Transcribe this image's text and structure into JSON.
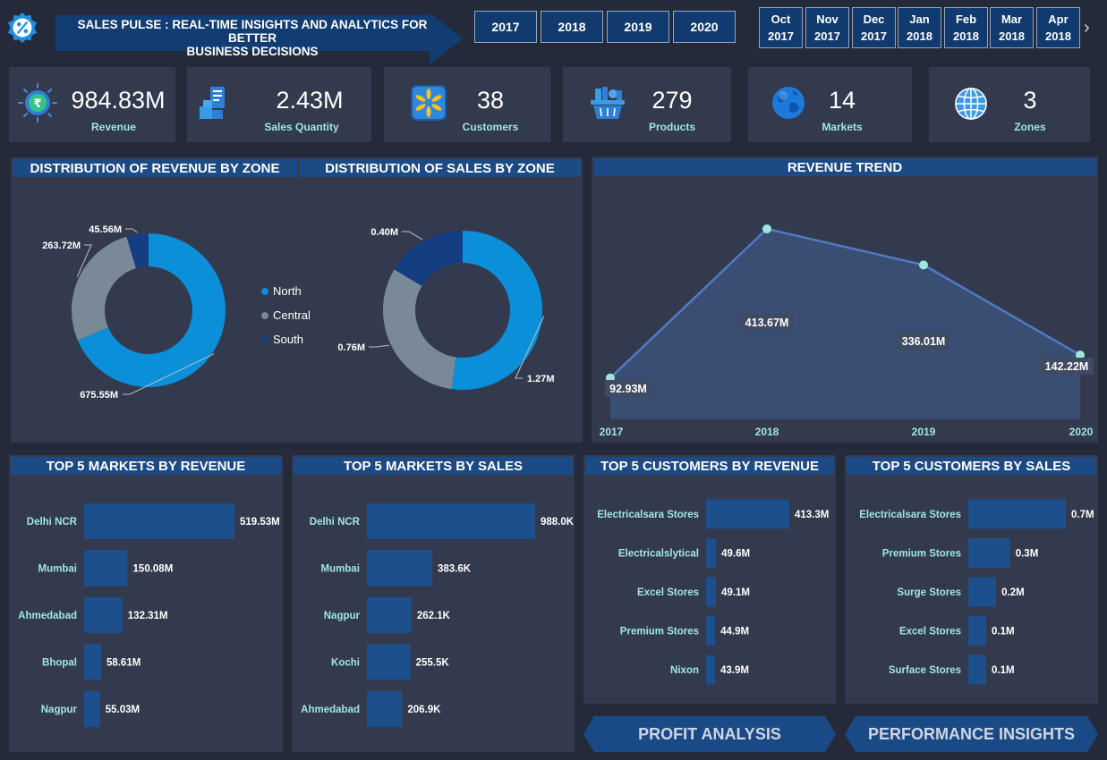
{
  "header": {
    "title_line1": "SALES PULSE : REAL-TIME INSIGHTS AND ANALYTICS FOR BETTER",
    "title_line2": "BUSINESS DECISIONS",
    "logo_icon": "percent-badge-icon"
  },
  "years": [
    "2017",
    "2018",
    "2019",
    "2020"
  ],
  "months": [
    {
      "m": "Oct",
      "y": "2017"
    },
    {
      "m": "Nov",
      "y": "2017"
    },
    {
      "m": "Dec",
      "y": "2017"
    },
    {
      "m": "Jan",
      "y": "2018"
    },
    {
      "m": "Feb",
      "y": "2018"
    },
    {
      "m": "Mar",
      "y": "2018"
    },
    {
      "m": "Apr",
      "y": "2018"
    }
  ],
  "next_icon": "chevron-right-icon",
  "kpis": [
    {
      "value": "984.83M",
      "label": "Revenue",
      "icon": "rupee-coin-icon"
    },
    {
      "value": "2.43M",
      "label": "Sales Quantity",
      "icon": "boxes-icon"
    },
    {
      "value": "38",
      "label": "Customers",
      "icon": "walmart-logo-icon"
    },
    {
      "value": "279",
      "label": "Products",
      "icon": "grocery-basket-icon"
    },
    {
      "value": "14",
      "label": "Markets",
      "icon": "globe-icon"
    },
    {
      "value": "3",
      "label": "Zones",
      "icon": "world-grid-icon"
    }
  ],
  "colors": {
    "north": "#0a8fd8",
    "central": "#7a8997",
    "south": "#153e82",
    "bar": "#1d4f8c",
    "accent_text": "#9fe6e0",
    "title_bg": "#1c4a84"
  },
  "nav": {
    "profit": "PROFIT ANALYSIS",
    "performance": "PERFORMANCE INSIGHTS"
  },
  "chart_data": [
    {
      "id": "revenue_by_zone",
      "type": "pie",
      "title": "DISTRIBUTION OF REVENUE BY ZONE",
      "categories": [
        "North",
        "Central",
        "South"
      ],
      "values": [
        675.55,
        263.72,
        45.56
      ],
      "labels": [
        "675.55M",
        "263.72M",
        "45.56M"
      ]
    },
    {
      "id": "sales_by_zone",
      "type": "pie",
      "title": "DISTRIBUTION OF SALES BY ZONE",
      "categories": [
        "North",
        "Central",
        "South"
      ],
      "values": [
        1.27,
        0.76,
        0.4
      ],
      "labels": [
        "1.27M",
        "0.76M",
        "0.40M"
      ]
    },
    {
      "id": "revenue_trend",
      "type": "area",
      "title": "REVENUE TREND",
      "x": [
        "2017",
        "2018",
        "2019",
        "2020"
      ],
      "values": [
        92.93,
        413.67,
        336.01,
        142.22
      ],
      "labels": [
        "92.93M",
        "413.67M",
        "336.01M",
        "142.22M"
      ]
    },
    {
      "id": "top_markets_revenue",
      "type": "bar",
      "title": "TOP 5 MARKETS BY REVENUE",
      "categories": [
        "Delhi NCR",
        "Mumbai",
        "Ahmedabad",
        "Bhopal",
        "Nagpur"
      ],
      "values": [
        519.53,
        150.08,
        132.31,
        58.61,
        55.03
      ],
      "labels": [
        "519.53M",
        "150.08M",
        "132.31M",
        "58.61M",
        "55.03M"
      ]
    },
    {
      "id": "top_markets_sales",
      "type": "bar",
      "title": "TOP 5 MARKETS BY SALES",
      "categories": [
        "Delhi NCR",
        "Mumbai",
        "Nagpur",
        "Kochi",
        "Ahmedabad"
      ],
      "values": [
        988.0,
        383.6,
        262.1,
        255.5,
        206.9
      ],
      "labels": [
        "988.0K",
        "383.6K",
        "262.1K",
        "255.5K",
        "206.9K"
      ]
    },
    {
      "id": "top_customers_revenue",
      "type": "bar",
      "title": "TOP 5 CUSTOMERS BY REVENUE",
      "categories": [
        "Electricalsara Stores",
        "Electricalslytical",
        "Excel Stores",
        "Premium Stores",
        "Nixon"
      ],
      "values": [
        413.3,
        49.6,
        49.1,
        44.9,
        43.9
      ],
      "labels": [
        "413.3M",
        "49.6M",
        "49.1M",
        "44.9M",
        "43.9M"
      ]
    },
    {
      "id": "top_customers_sales",
      "type": "bar",
      "title": "TOP 5 CUSTOMERS BY SALES",
      "categories": [
        "Electricalsara Stores",
        "Premium Stores",
        "Surge Stores",
        "Excel Stores",
        "Surface Stores"
      ],
      "values": [
        0.7,
        0.3,
        0.2,
        0.1,
        0.1
      ],
      "labels": [
        "0.7M",
        "0.3M",
        "0.2M",
        "0.1M",
        "0.1M"
      ]
    }
  ]
}
